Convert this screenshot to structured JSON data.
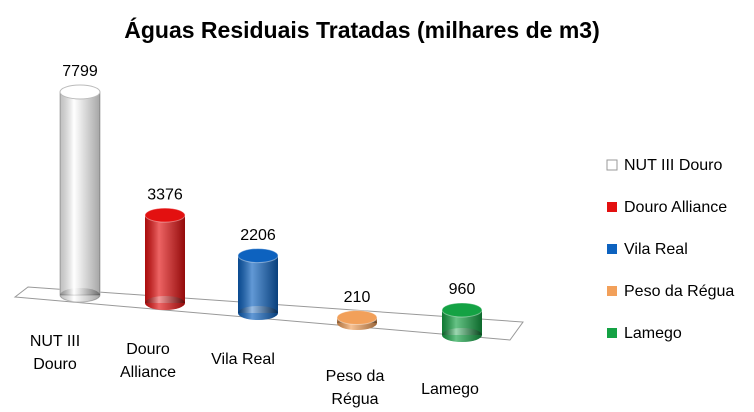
{
  "chart_data": {
    "type": "bar3d",
    "title": "Águas Residuais Tratadas (milhares de m3)",
    "categories": [
      "NUT III Douro",
      "Douro Alliance",
      "Vila Real",
      "Peso da Régua",
      "Lamego"
    ],
    "values": [
      7799,
      3376,
      2206,
      210,
      960
    ],
    "colors": [
      "#ffffff",
      "#e31010",
      "#0d62bf",
      "#f2a05a",
      "#14a244"
    ],
    "legend": "right"
  }
}
